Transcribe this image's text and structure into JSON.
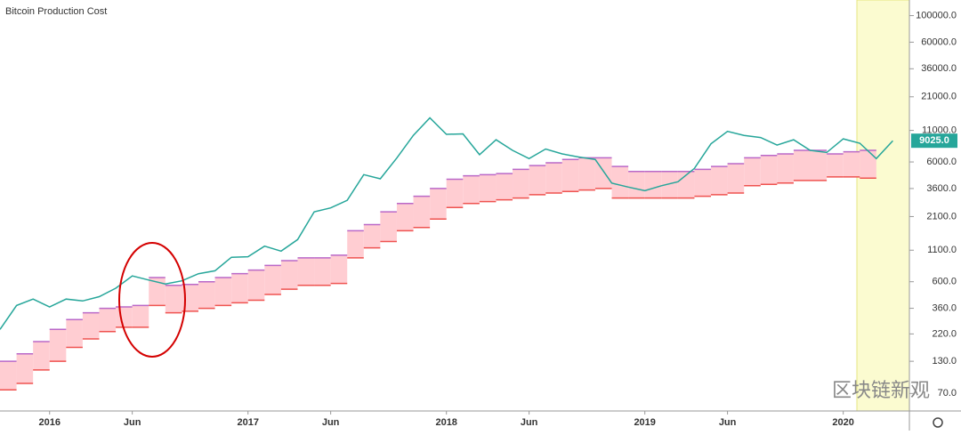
{
  "chart_data": {
    "type": "line",
    "title": "Bitcoin Production Cost",
    "watermark": "区块链新观",
    "x": [
      "2015-10",
      "2015-11",
      "2015-12",
      "2016-01",
      "2016-02",
      "2016-03",
      "2016-04",
      "2016-05",
      "2016-06",
      "2016-07",
      "2016-08",
      "2016-09",
      "2016-10",
      "2016-11",
      "2016-12",
      "2017-01",
      "2017-02",
      "2017-03",
      "2017-04",
      "2017-05",
      "2017-06",
      "2017-07",
      "2017-08",
      "2017-09",
      "2017-10",
      "2017-11",
      "2017-12",
      "2018-01",
      "2018-02",
      "2018-03",
      "2018-04",
      "2018-05",
      "2018-06",
      "2018-07",
      "2018-08",
      "2018-09",
      "2018-10",
      "2018-11",
      "2018-12",
      "2019-01",
      "2019-02",
      "2019-03",
      "2019-04",
      "2019-05",
      "2019-06",
      "2019-07",
      "2019-08",
      "2019-09",
      "2019-10",
      "2019-11",
      "2019-12",
      "2020-01",
      "2020-02",
      "2020-03",
      "2020-04"
    ],
    "xlim": [
      "2015-10",
      "2020-05"
    ],
    "xticks": [
      {
        "value": "2016-01",
        "label": "2016"
      },
      {
        "value": "2016-06",
        "label": "Jun"
      },
      {
        "value": "2017-01",
        "label": "2017"
      },
      {
        "value": "2017-06",
        "label": "Jun"
      },
      {
        "value": "2018-01",
        "label": "2018"
      },
      {
        "value": "2018-06",
        "label": "Jun"
      },
      {
        "value": "2019-01",
        "label": "2019"
      },
      {
        "value": "2019-06",
        "label": "Jun"
      },
      {
        "value": "2020-01",
        "label": "2020"
      }
    ],
    "log_scale": true,
    "ylim": [
      50,
      135000
    ],
    "yticks": [
      {
        "value": 100000,
        "label": "100000.0"
      },
      {
        "value": 60000,
        "label": "60000.0"
      },
      {
        "value": 36000,
        "label": "36000.0"
      },
      {
        "value": 21000,
        "label": "21000.0"
      },
      {
        "value": 11000,
        "label": "11000.0"
      },
      {
        "value": 6000,
        "label": "6000.0"
      },
      {
        "value": 3600,
        "label": "3600.0"
      },
      {
        "value": 2100,
        "label": "2100.0"
      },
      {
        "value": 1100,
        "label": "1100.0"
      },
      {
        "value": 600,
        "label": "600.0"
      },
      {
        "value": 360,
        "label": "360.0"
      },
      {
        "value": 220,
        "label": "220.0"
      },
      {
        "value": 130,
        "label": "130.0"
      },
      {
        "value": 70,
        "label": "70.0"
      }
    ],
    "series": [
      {
        "color": "#26a69a",
        "values": [
          240,
          380,
          430,
          370,
          430,
          415,
          450,
          530,
          670,
          620,
          575,
          610,
          700,
          740,
          960,
          970,
          1190,
          1080,
          1350,
          2300,
          2480,
          2870,
          4700,
          4340,
          6470,
          10000,
          14000,
          10200,
          10300,
          6900,
          9200,
          7500,
          6400,
          7700,
          7000,
          6600,
          6300,
          4000,
          3700,
          3450,
          3800,
          4100,
          5300,
          8500,
          10800,
          10000,
          9600,
          8300,
          9200,
          7500,
          7200,
          9350,
          8600,
          6400,
          9025
        ]
      },
      {
        "color": "#ba68c8",
        "values": [
          130,
          150,
          190,
          240,
          290,
          330,
          360,
          370,
          380,
          650,
          560,
          570,
          600,
          650,
          700,
          750,
          820,
          900,
          950,
          950,
          1000,
          1600,
          1800,
          2300,
          2700,
          3100,
          3600,
          4300,
          4600,
          4700,
          4800,
          5200,
          5600,
          5900,
          6300,
          6500,
          6500,
          5500,
          5000,
          5000,
          5000,
          5000,
          5200,
          5500,
          5800,
          6500,
          6800,
          7000,
          7500,
          7500,
          7000,
          7300,
          7500,
          null,
          null
        ]
      },
      {
        "color": "#ef5350",
        "values": [
          75,
          85,
          110,
          130,
          170,
          200,
          230,
          250,
          250,
          380,
          330,
          340,
          360,
          380,
          400,
          420,
          470,
          520,
          560,
          560,
          580,
          950,
          1150,
          1300,
          1600,
          1700,
          2000,
          2500,
          2700,
          2800,
          2900,
          3000,
          3200,
          3300,
          3400,
          3500,
          3600,
          3000,
          3000,
          3000,
          3000,
          3000,
          3100,
          3200,
          3300,
          3800,
          3900,
          4000,
          4200,
          4200,
          4500,
          4500,
          4400,
          null,
          null
        ]
      }
    ],
    "band_fill": "#ffcdd2",
    "price_label": {
      "value": 9025,
      "label": "9025.0"
    }
  }
}
